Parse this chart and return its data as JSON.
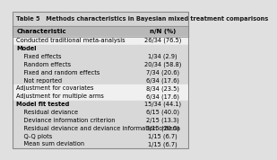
{
  "title": "Table 5   Methods characteristics in Bayesian mixed treatment comparisons",
  "col1_header": "Characteristic",
  "col2_header": "n/N (%)",
  "rows": [
    [
      "Conducted traditional meta-analysis",
      "26/34 (76.5)",
      false,
      false
    ],
    [
      "Model",
      "",
      true,
      false
    ],
    [
      "    Fixed effects",
      "1/34 (2.9)",
      false,
      true
    ],
    [
      "    Random effects",
      "20/34 (58.8)",
      false,
      true
    ],
    [
      "    Fixed and random effects",
      "7/34 (20.6)",
      false,
      true
    ],
    [
      "    Not reported",
      "6/34 (17.6)",
      false,
      true
    ],
    [
      "Adjustment for covariates",
      "8/34 (23.5)",
      false,
      false
    ],
    [
      "Adjustment for multiple arms",
      "6/34 (17.6)",
      false,
      false
    ],
    [
      "Model fit tested",
      "15/34 (44.1)",
      true,
      false
    ],
    [
      "    Residual deviance",
      "6/15 (40.0)",
      false,
      true
    ],
    [
      "    Deviance information criterion",
      "2/15 (13.3)",
      false,
      true
    ],
    [
      "    Residual deviance and deviance information criteria",
      "3/15 (20.0)",
      false,
      true
    ],
    [
      "    Q-Q plots",
      "1/15 (6.7)",
      false,
      true
    ],
    [
      "    Mean sum deviation",
      "1/15 (6.7)",
      false,
      true
    ]
  ],
  "title_bg": "#d4d4d4",
  "header_bg": "#b8b8b8",
  "row_bg_light": "#f0f0f0",
  "row_bg_dark": "#d8d8d8",
  "outer_bg": "#e0e0e0",
  "font_size": 4.8,
  "title_font_size": 4.8,
  "header_font_size": 5.0,
  "col_split": 0.68
}
